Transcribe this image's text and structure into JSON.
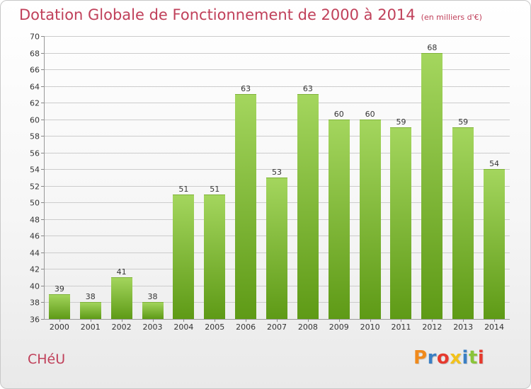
{
  "header": {
    "title": "Dotation Globale de Fonctionnement de 2000 à 2014",
    "subtitle": "(en milliers d'€)"
  },
  "footer": {
    "commune": "CHéU",
    "logo_text": "Proxiti",
    "logo_colors": [
      "#f08a1c",
      "#3a7fc4",
      "#e63a2e",
      "#f2c21c",
      "#3a7fc4",
      "#8ac43a",
      "#e63a2e"
    ]
  },
  "colors": {
    "bar_top": "#a4d65e",
    "bar_bottom": "#5e9a16",
    "grid": "#cccccc",
    "title": "#c0405a"
  },
  "chart_data": {
    "type": "bar",
    "title": "Dotation Globale de Fonctionnement de 2000 à 2014",
    "subtitle": "(en milliers d'€)",
    "xlabel": "",
    "ylabel": "",
    "ylim": [
      36,
      70
    ],
    "ytick_step": 2,
    "grid": true,
    "legend": "none",
    "categories": [
      "2000",
      "2001",
      "2002",
      "2003",
      "2004",
      "2005",
      "2006",
      "2007",
      "2008",
      "2009",
      "2010",
      "2011",
      "2012",
      "2013",
      "2014"
    ],
    "values": [
      39,
      38,
      41,
      38,
      51,
      51,
      63,
      53,
      63,
      60,
      60,
      59,
      68,
      59,
      54
    ]
  }
}
